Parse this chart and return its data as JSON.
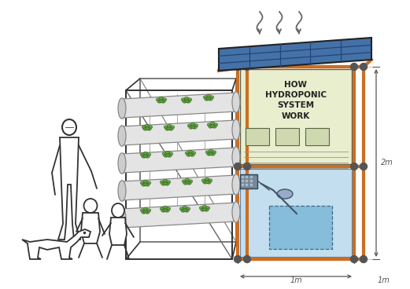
{
  "bg_color": "#ffffff",
  "frame_color": "#cc6e22",
  "frame_lw": 3.0,
  "joint_color": "#555555",
  "joint_r": 4.5,
  "solar_color": "#4472a8",
  "solar_edge": "#222222",
  "board_color": "#e8edcc",
  "board_edge": "#555544",
  "tank_color": "#aad0e8",
  "tank_edge": "#335577",
  "inner_tank_color": "#7ab8d8",
  "pipe_color": "#e4e4e4",
  "pipe_edge": "#888888",
  "plant_color": "#5a9a3a",
  "plant_edge": "#2a6010",
  "sketch_color": "#333333",
  "dim_color": "#555555",
  "board_text": "HOW\nHYDROPONIC\nSYSTEM\nWORK",
  "dim_2m": "2m",
  "dim_1m": "1m",
  "dim_1m2": "1m",
  "heat_color": "#666666"
}
